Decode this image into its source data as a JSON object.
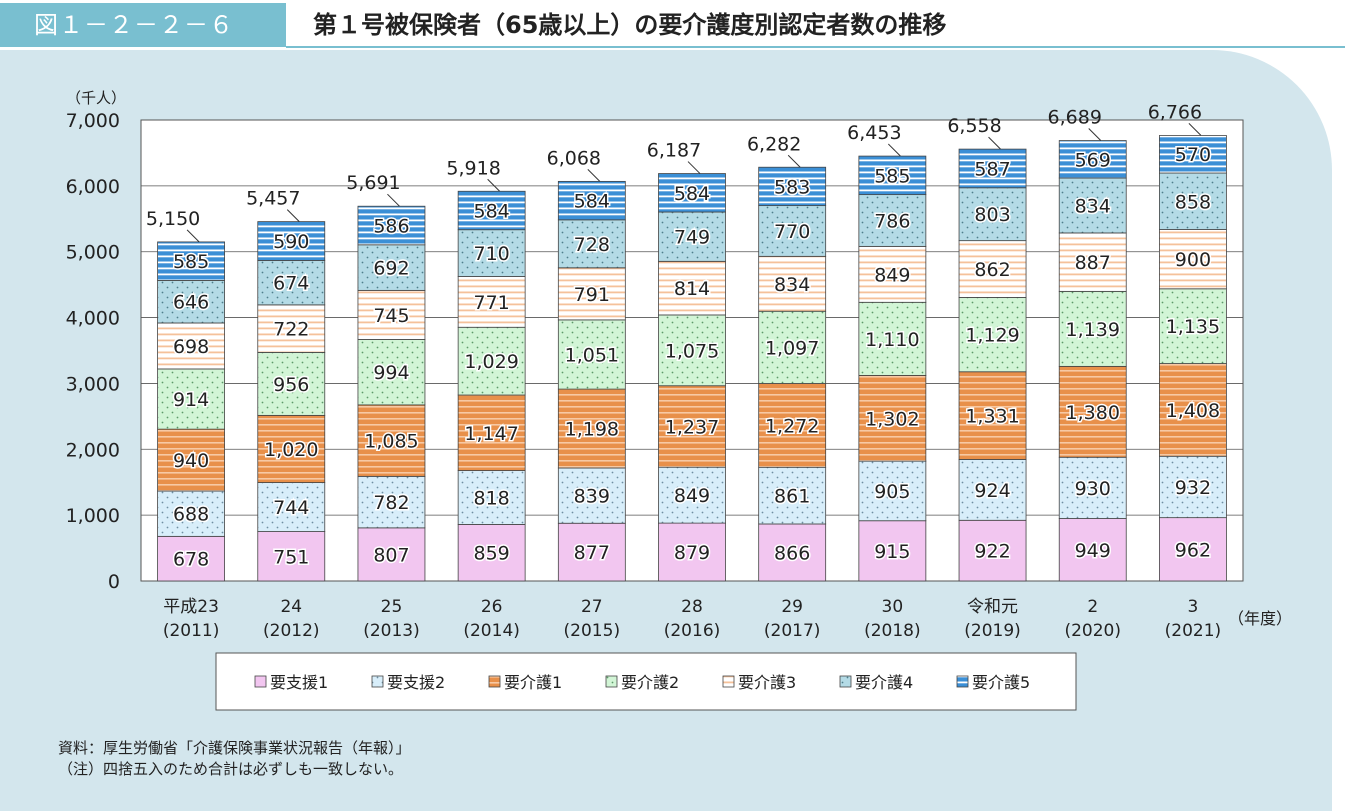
{
  "header": {
    "figure_number": "図１－２－２－６",
    "title": "第１号被保険者（65歳以上）の要介護度別認定者数の推移"
  },
  "chart_data": {
    "type": "bar",
    "stacked": true,
    "title": "第１号被保険者（65歳以上）の要介護度別認定者数の推移",
    "ylabel": "（千人）",
    "xlabel": "（年度）",
    "ylim": [
      0,
      7000
    ],
    "yticks": [
      "0",
      "1,000",
      "2,000",
      "3,000",
      "4,000",
      "5,000",
      "6,000",
      "7,000"
    ],
    "grid": true,
    "legend_position": "bottom",
    "categories": [
      {
        "era": "平成23",
        "year": "(2011)"
      },
      {
        "era": "24",
        "year": "(2012)"
      },
      {
        "era": "25",
        "year": "(2013)"
      },
      {
        "era": "26",
        "year": "(2014)"
      },
      {
        "era": "27",
        "year": "(2015)"
      },
      {
        "era": "28",
        "year": "(2016)"
      },
      {
        "era": "29",
        "year": "(2017)"
      },
      {
        "era": "30",
        "year": "(2018)"
      },
      {
        "era": "令和元",
        "year": "(2019)"
      },
      {
        "era": "2",
        "year": "(2020)"
      },
      {
        "era": "3",
        "year": "(2021)"
      }
    ],
    "series": [
      {
        "name": "要支援1",
        "color": "#f2c6f0",
        "pattern": "none",
        "values": [
          678,
          751,
          807,
          859,
          877,
          879,
          866,
          915,
          922,
          949,
          962
        ],
        "labels": [
          "678",
          "751",
          "807",
          "859",
          "877",
          "879",
          "866",
          "915",
          "922",
          "949",
          "962"
        ]
      },
      {
        "name": "要支援2",
        "color": "#d8eefa",
        "pattern": "dots-blue",
        "values": [
          688,
          744,
          782,
          818,
          839,
          849,
          861,
          905,
          924,
          930,
          932
        ],
        "labels": [
          "688",
          "744",
          "782",
          "818",
          "839",
          "849",
          "861",
          "905",
          "924",
          "930",
          "932"
        ]
      },
      {
        "name": "要介護1",
        "color": "#e8904a",
        "pattern": "hstripes-white",
        "values": [
          940,
          1020,
          1085,
          1147,
          1198,
          1237,
          1272,
          1302,
          1331,
          1380,
          1408
        ],
        "labels": [
          "940",
          "1,020",
          "1,085",
          "1,147",
          "1,198",
          "1,237",
          "1,272",
          "1,302",
          "1,331",
          "1,380",
          "1,408"
        ]
      },
      {
        "name": "要介護2",
        "color": "#d2f5d6",
        "pattern": "dots-green",
        "values": [
          914,
          956,
          994,
          1029,
          1051,
          1075,
          1097,
          1110,
          1129,
          1139,
          1135
        ],
        "labels": [
          "914",
          "956",
          "994",
          "1,029",
          "1,051",
          "1,075",
          "1,097",
          "1,110",
          "1,129",
          "1,139",
          "1,135"
        ]
      },
      {
        "name": "要介護3",
        "color": "#fde3cc",
        "pattern": "hstripes-orange",
        "values": [
          698,
          722,
          745,
          771,
          791,
          814,
          834,
          849,
          862,
          887,
          900
        ],
        "labels": [
          "698",
          "722",
          "745",
          "771",
          "791",
          "814",
          "834",
          "849",
          "862",
          "887",
          "900"
        ]
      },
      {
        "name": "要介護4",
        "color": "#b4dbe6",
        "pattern": "dots-teal",
        "values": [
          646,
          674,
          692,
          710,
          728,
          749,
          770,
          786,
          803,
          834,
          858
        ],
        "labels": [
          "646",
          "674",
          "692",
          "710",
          "728",
          "749",
          "770",
          "786",
          "803",
          "834",
          "858"
        ]
      },
      {
        "name": "要介護5",
        "color": "#3b8fd6",
        "pattern": "hstripes-blue",
        "values": [
          585,
          590,
          586,
          584,
          584,
          584,
          583,
          585,
          587,
          569,
          570
        ],
        "labels": [
          "585",
          "590",
          "586",
          "584",
          "584",
          "584",
          "583",
          "585",
          "587",
          "569",
          "570"
        ]
      }
    ],
    "totals": [
      "5,150",
      "5,457",
      "5,691",
      "5,918",
      "6,068",
      "6,187",
      "6,282",
      "6,453",
      "6,558",
      "6,689",
      "6,766"
    ],
    "total_values": [
      5150,
      5457,
      5691,
      5918,
      6068,
      6187,
      6282,
      6453,
      6558,
      6689,
      6766
    ]
  },
  "notes": {
    "source": "資料：厚生労働省「介護保険事業状況報告（年報）」",
    "note": "（注）四捨五入のため合計は必ずしも一致しない。"
  }
}
